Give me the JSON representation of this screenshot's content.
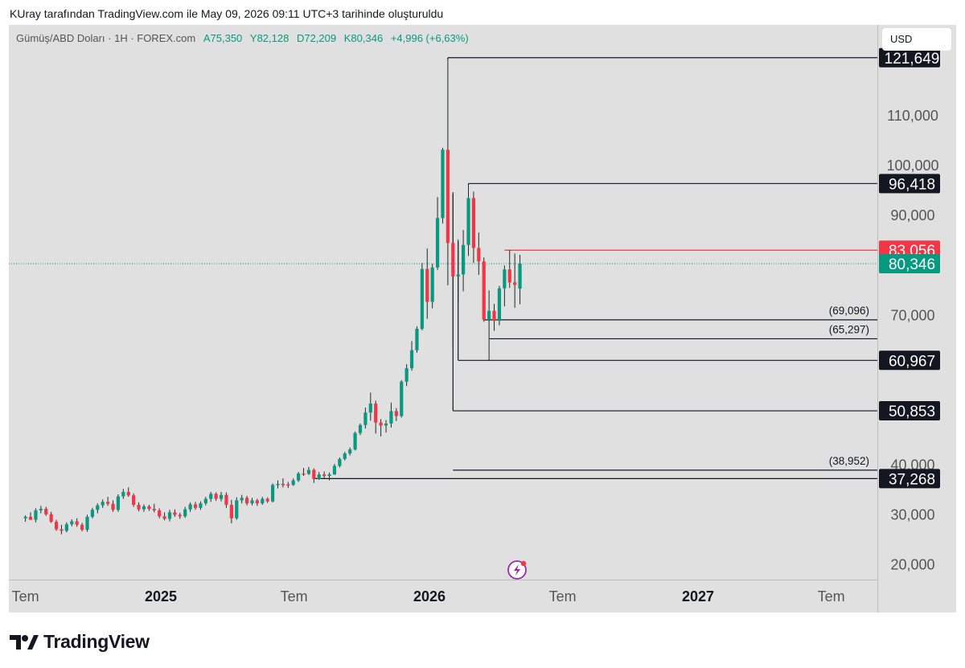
{
  "header": {
    "text": "KUray tarafından TradingView.com ile May 09, 2026 09:11 UTC+3 tarihinde oluşturuldu"
  },
  "legend": {
    "symbol": "Gümüş/ABD Doları · 1H · FOREX.com",
    "open_label": "A",
    "open": "75,350",
    "high_label": "Y",
    "high": "82,128",
    "low_label": "D",
    "low": "72,209",
    "close_label": "K",
    "close": "80,346",
    "change": "+4,996 (+6,63%)"
  },
  "currency_button": "USD",
  "brand": {
    "name": "TradingView"
  },
  "colors": {
    "up": "#089981",
    "down": "#f23645",
    "background": "#e0e0e0",
    "line": "#131722",
    "label_bg": "#131722"
  },
  "chart_data": {
    "type": "candlestick",
    "y_axis": {
      "min": 16000,
      "max": 127000,
      "ticks": [
        20000,
        30000,
        40000,
        70000,
        90000,
        100000,
        110000
      ],
      "tick_labels": [
        "20,000",
        "30,000",
        "40,000",
        "70,000",
        "90,000",
        "100,000",
        "110,000"
      ]
    },
    "x_axis": {
      "ticks": [
        {
          "label": "Tem",
          "date": "2024-07"
        },
        {
          "label": "2025",
          "date": "2025-01"
        },
        {
          "label": "Tem",
          "date": "2025-07"
        },
        {
          "label": "2026",
          "date": "2026-01"
        },
        {
          "label": "Tem",
          "date": "2026-07"
        },
        {
          "label": "2027",
          "date": "2027-01"
        },
        {
          "label": "Tem",
          "date": "2027-07"
        }
      ]
    },
    "candles": [
      {
        "date": "2024-07-01",
        "o": 29.3,
        "h": 29.9,
        "l": 28.6,
        "c": 29.6
      },
      {
        "date": "2024-07-08",
        "o": 29.6,
        "h": 30.5,
        "l": 29.0,
        "c": 29.0
      },
      {
        "date": "2024-07-15",
        "o": 29.0,
        "h": 31.3,
        "l": 28.5,
        "c": 30.9
      },
      {
        "date": "2024-07-22",
        "o": 30.9,
        "h": 31.8,
        "l": 30.3,
        "c": 31.2
      },
      {
        "date": "2024-07-29",
        "o": 31.2,
        "h": 31.6,
        "l": 29.8,
        "c": 30.1
      },
      {
        "date": "2024-08-05",
        "o": 30.1,
        "h": 30.6,
        "l": 28.4,
        "c": 28.6
      },
      {
        "date": "2024-08-12",
        "o": 28.6,
        "h": 29.0,
        "l": 26.8,
        "c": 27.1
      },
      {
        "date": "2024-08-19",
        "o": 27.1,
        "h": 28.0,
        "l": 26.1,
        "c": 26.8
      },
      {
        "date": "2024-08-26",
        "o": 26.8,
        "h": 28.5,
        "l": 26.5,
        "c": 28.1
      },
      {
        "date": "2024-09-02",
        "o": 28.1,
        "h": 29.1,
        "l": 27.7,
        "c": 28.7
      },
      {
        "date": "2024-09-09",
        "o": 28.7,
        "h": 29.3,
        "l": 27.6,
        "c": 28.0
      },
      {
        "date": "2024-09-16",
        "o": 28.0,
        "h": 28.4,
        "l": 26.7,
        "c": 27.0
      },
      {
        "date": "2024-09-23",
        "o": 27.0,
        "h": 30.0,
        "l": 26.6,
        "c": 29.6
      },
      {
        "date": "2024-09-30",
        "o": 29.6,
        "h": 31.4,
        "l": 29.3,
        "c": 31.0
      },
      {
        "date": "2024-10-07",
        "o": 31.0,
        "h": 32.3,
        "l": 30.3,
        "c": 31.9
      },
      {
        "date": "2024-10-14",
        "o": 31.9,
        "h": 33.1,
        "l": 31.4,
        "c": 32.6
      },
      {
        "date": "2024-10-21",
        "o": 32.6,
        "h": 33.6,
        "l": 31.8,
        "c": 32.2
      },
      {
        "date": "2024-10-28",
        "o": 32.2,
        "h": 32.9,
        "l": 30.6,
        "c": 31.0
      },
      {
        "date": "2024-11-04",
        "o": 31.0,
        "h": 34.1,
        "l": 30.6,
        "c": 33.7
      },
      {
        "date": "2024-11-11",
        "o": 33.7,
        "h": 35.2,
        "l": 33.2,
        "c": 34.6
      },
      {
        "date": "2024-11-18",
        "o": 34.6,
        "h": 35.5,
        "l": 33.6,
        "c": 33.9
      },
      {
        "date": "2024-11-25",
        "o": 33.9,
        "h": 34.3,
        "l": 31.6,
        "c": 32.0
      },
      {
        "date": "2024-12-02",
        "o": 32.0,
        "h": 32.5,
        "l": 30.7,
        "c": 31.1
      },
      {
        "date": "2024-12-09",
        "o": 31.1,
        "h": 32.1,
        "l": 30.6,
        "c": 31.7
      },
      {
        "date": "2024-12-16",
        "o": 31.7,
        "h": 32.0,
        "l": 30.8,
        "c": 31.2
      },
      {
        "date": "2024-12-23",
        "o": 31.2,
        "h": 32.2,
        "l": 30.5,
        "c": 30.9
      },
      {
        "date": "2024-12-30",
        "o": 30.9,
        "h": 31.3,
        "l": 29.3,
        "c": 29.7
      },
      {
        "date": "2025-01-06",
        "o": 29.7,
        "h": 30.5,
        "l": 28.9,
        "c": 29.2
      },
      {
        "date": "2025-01-13",
        "o": 29.2,
        "h": 31.0,
        "l": 28.7,
        "c": 30.5
      },
      {
        "date": "2025-01-20",
        "o": 30.5,
        "h": 31.1,
        "l": 29.6,
        "c": 30.0
      },
      {
        "date": "2025-01-27",
        "o": 30.0,
        "h": 30.4,
        "l": 29.2,
        "c": 29.7
      },
      {
        "date": "2025-02-03",
        "o": 29.7,
        "h": 31.6,
        "l": 29.4,
        "c": 31.1
      },
      {
        "date": "2025-02-10",
        "o": 31.1,
        "h": 32.5,
        "l": 30.6,
        "c": 32.1
      },
      {
        "date": "2025-02-17",
        "o": 32.1,
        "h": 32.6,
        "l": 31.0,
        "c": 31.4
      },
      {
        "date": "2025-02-24",
        "o": 31.4,
        "h": 32.7,
        "l": 31.0,
        "c": 32.3
      },
      {
        "date": "2025-03-03",
        "o": 32.3,
        "h": 33.6,
        "l": 31.9,
        "c": 33.2
      },
      {
        "date": "2025-03-10",
        "o": 33.2,
        "h": 34.6,
        "l": 32.6,
        "c": 34.2
      },
      {
        "date": "2025-03-17",
        "o": 34.2,
        "h": 34.5,
        "l": 32.8,
        "c": 33.2
      },
      {
        "date": "2025-03-24",
        "o": 33.2,
        "h": 34.6,
        "l": 32.7,
        "c": 34.0
      },
      {
        "date": "2025-03-31",
        "o": 34.0,
        "h": 34.5,
        "l": 31.4,
        "c": 32.0
      },
      {
        "date": "2025-04-07",
        "o": 32.0,
        "h": 33.0,
        "l": 28.3,
        "c": 29.3
      },
      {
        "date": "2025-04-14",
        "o": 29.3,
        "h": 33.5,
        "l": 29.0,
        "c": 32.9
      },
      {
        "date": "2025-04-21",
        "o": 32.9,
        "h": 34.0,
        "l": 32.3,
        "c": 33.4
      },
      {
        "date": "2025-04-28",
        "o": 33.4,
        "h": 33.8,
        "l": 31.9,
        "c": 32.3
      },
      {
        "date": "2025-05-05",
        "o": 32.3,
        "h": 33.4,
        "l": 31.9,
        "c": 32.9
      },
      {
        "date": "2025-05-12",
        "o": 32.9,
        "h": 33.2,
        "l": 31.8,
        "c": 32.3
      },
      {
        "date": "2025-05-19",
        "o": 32.3,
        "h": 33.6,
        "l": 32.0,
        "c": 33.2
      },
      {
        "date": "2025-05-26",
        "o": 33.2,
        "h": 33.5,
        "l": 32.4,
        "c": 32.7
      },
      {
        "date": "2025-06-02",
        "o": 32.7,
        "h": 36.3,
        "l": 32.5,
        "c": 36.0
      },
      {
        "date": "2025-06-09",
        "o": 36.0,
        "h": 36.9,
        "l": 35.3,
        "c": 36.2
      },
      {
        "date": "2025-06-16",
        "o": 36.2,
        "h": 37.3,
        "l": 35.5,
        "c": 36.1
      },
      {
        "date": "2025-06-23",
        "o": 36.1,
        "h": 36.6,
        "l": 35.4,
        "c": 36.0
      },
      {
        "date": "2025-06-30",
        "o": 36.0,
        "h": 37.3,
        "l": 35.8,
        "c": 36.9
      },
      {
        "date": "2025-07-07",
        "o": 36.9,
        "h": 38.6,
        "l": 36.6,
        "c": 38.3
      },
      {
        "date": "2025-07-14",
        "o": 38.3,
        "h": 39.4,
        "l": 37.8,
        "c": 38.2
      },
      {
        "date": "2025-07-21",
        "o": 38.2,
        "h": 39.6,
        "l": 38.0,
        "c": 39.0
      },
      {
        "date": "2025-07-28",
        "o": 39.0,
        "h": 39.3,
        "l": 36.4,
        "c": 37.2
      },
      {
        "date": "2025-08-04",
        "o": 37.2,
        "h": 38.6,
        "l": 37.0,
        "c": 38.1
      },
      {
        "date": "2025-08-11",
        "o": 38.1,
        "h": 38.7,
        "l": 37.3,
        "c": 37.8
      },
      {
        "date": "2025-08-18",
        "o": 37.8,
        "h": 38.5,
        "l": 36.9,
        "c": 38.1
      },
      {
        "date": "2025-08-25",
        "o": 38.1,
        "h": 40.2,
        "l": 38.0,
        "c": 39.8
      },
      {
        "date": "2025-09-01",
        "o": 39.8,
        "h": 41.5,
        "l": 39.5,
        "c": 41.2
      },
      {
        "date": "2025-09-08",
        "o": 41.2,
        "h": 42.6,
        "l": 40.9,
        "c": 42.3
      },
      {
        "date": "2025-09-15",
        "o": 42.3,
        "h": 43.5,
        "l": 41.9,
        "c": 43.1
      },
      {
        "date": "2025-09-22",
        "o": 43.1,
        "h": 46.7,
        "l": 42.9,
        "c": 46.4
      },
      {
        "date": "2025-09-29",
        "o": 46.4,
        "h": 48.3,
        "l": 46.0,
        "c": 48.0
      },
      {
        "date": "2025-10-06",
        "o": 48.0,
        "h": 51.5,
        "l": 47.3,
        "c": 50.5
      },
      {
        "date": "2025-10-13",
        "o": 50.5,
        "h": 54.5,
        "l": 48.9,
        "c": 52.3
      },
      {
        "date": "2025-10-20",
        "o": 52.3,
        "h": 52.9,
        "l": 46.3,
        "c": 48.5
      },
      {
        "date": "2025-10-27",
        "o": 48.5,
        "h": 49.2,
        "l": 45.7,
        "c": 47.9
      },
      {
        "date": "2025-11-03",
        "o": 47.9,
        "h": 49.0,
        "l": 46.5,
        "c": 48.3
      },
      {
        "date": "2025-11-10",
        "o": 48.3,
        "h": 52.5,
        "l": 47.5,
        "c": 50.8
      },
      {
        "date": "2025-11-17",
        "o": 50.8,
        "h": 51.4,
        "l": 48.8,
        "c": 49.8
      },
      {
        "date": "2025-11-24",
        "o": 49.8,
        "h": 57.0,
        "l": 49.5,
        "c": 56.7
      },
      {
        "date": "2025-12-01",
        "o": 56.7,
        "h": 60.2,
        "l": 55.8,
        "c": 59.4
      },
      {
        "date": "2025-12-08",
        "o": 59.4,
        "h": 64.8,
        "l": 58.9,
        "c": 63.0
      },
      {
        "date": "2025-12-15",
        "o": 63.0,
        "h": 67.8,
        "l": 62.5,
        "c": 67.3
      },
      {
        "date": "2025-12-22",
        "o": 67.3,
        "h": 80.5,
        "l": 67.0,
        "c": 79.3
      },
      {
        "date": "2025-12-29",
        "o": 79.3,
        "h": 83.4,
        "l": 69.3,
        "c": 72.7
      },
      {
        "date": "2026-01-05",
        "o": 72.7,
        "h": 80.3,
        "l": 71.4,
        "c": 79.6
      },
      {
        "date": "2026-01-12",
        "o": 79.6,
        "h": 93.7,
        "l": 79.1,
        "c": 89.5
      },
      {
        "date": "2026-01-19",
        "o": 89.5,
        "h": 103.6,
        "l": 88.4,
        "c": 103.2
      },
      {
        "date": "2026-01-26",
        "o": 103.2,
        "h": 121.6,
        "l": 76.0,
        "c": 84.5
      },
      {
        "date": "2026-02-02",
        "o": 84.5,
        "h": 94.7,
        "l": 63.8,
        "c": 77.8
      },
      {
        "date": "2026-02-09",
        "o": 77.8,
        "h": 85.2,
        "l": 72.7,
        "c": 78.2
      },
      {
        "date": "2026-02-16",
        "o": 78.2,
        "h": 87.1,
        "l": 74.8,
        "c": 84.1
      },
      {
        "date": "2026-02-23",
        "o": 84.1,
        "h": 96.4,
        "l": 81.9,
        "c": 93.5
      },
      {
        "date": "2026-03-02",
        "o": 93.5,
        "h": 94.8,
        "l": 80.5,
        "c": 83.5
      },
      {
        "date": "2026-03-09",
        "o": 83.5,
        "h": 86.6,
        "l": 78.1,
        "c": 80.8
      },
      {
        "date": "2026-03-16",
        "o": 80.8,
        "h": 81.6,
        "l": 68.7,
        "c": 69.1
      },
      {
        "date": "2026-03-23",
        "o": 69.1,
        "h": 75.0,
        "l": 61.0,
        "c": 70.9
      },
      {
        "date": "2026-03-30",
        "o": 70.9,
        "h": 72.3,
        "l": 66.9,
        "c": 68.9
      },
      {
        "date": "2026-04-06",
        "o": 68.9,
        "h": 75.9,
        "l": 68.0,
        "c": 75.4
      },
      {
        "date": "2026-04-13",
        "o": 75.4,
        "h": 80.0,
        "l": 71.8,
        "c": 79.2
      },
      {
        "date": "2026-04-20",
        "o": 79.2,
        "h": 83.1,
        "l": 75.5,
        "c": 76.6
      },
      {
        "date": "2026-04-27",
        "o": 76.6,
        "h": 82.4,
        "l": 71.5,
        "c": 76.1
      },
      {
        "date": "2026-05-04",
        "o": 75.35,
        "h": 82.128,
        "l": 72.209,
        "c": 80.346
      }
    ],
    "price_scale_factor": 1000,
    "horizontal_levels": [
      {
        "value": 121649,
        "label": "121,649",
        "style": "axis-label",
        "from": "2026-01-26",
        "color": "#131722"
      },
      {
        "value": 96418,
        "label": "96,418",
        "style": "axis-label",
        "from": "2026-02-23",
        "color": "#131722"
      },
      {
        "value": 83056,
        "label": "83,056",
        "style": "axis-label",
        "from": "2026-04-13",
        "color": "#f23645"
      },
      {
        "value": 69096,
        "label": "(69,096)",
        "style": "text",
        "from": "2026-03-16",
        "color": "#131722"
      },
      {
        "value": 65297,
        "label": "(65,297)",
        "style": "text",
        "from": "2026-03-23",
        "color": "#131722"
      },
      {
        "value": 60967,
        "label": "60,967",
        "style": "axis-label",
        "from": "2026-02-09",
        "color": "#131722"
      },
      {
        "value": 50853,
        "label": "50,853",
        "style": "axis-label",
        "from": "2026-02-02",
        "color": "#131722"
      },
      {
        "value": 38952,
        "label": "(38,952)",
        "style": "text",
        "from": "2026-02-02",
        "color": "#131722"
      },
      {
        "value": 37268,
        "label": "37,268",
        "style": "axis-label",
        "from": "2025-07-28",
        "color": "#131722"
      }
    ],
    "last_price": {
      "value": 80346,
      "label": "80,346",
      "color": "#089981"
    }
  }
}
